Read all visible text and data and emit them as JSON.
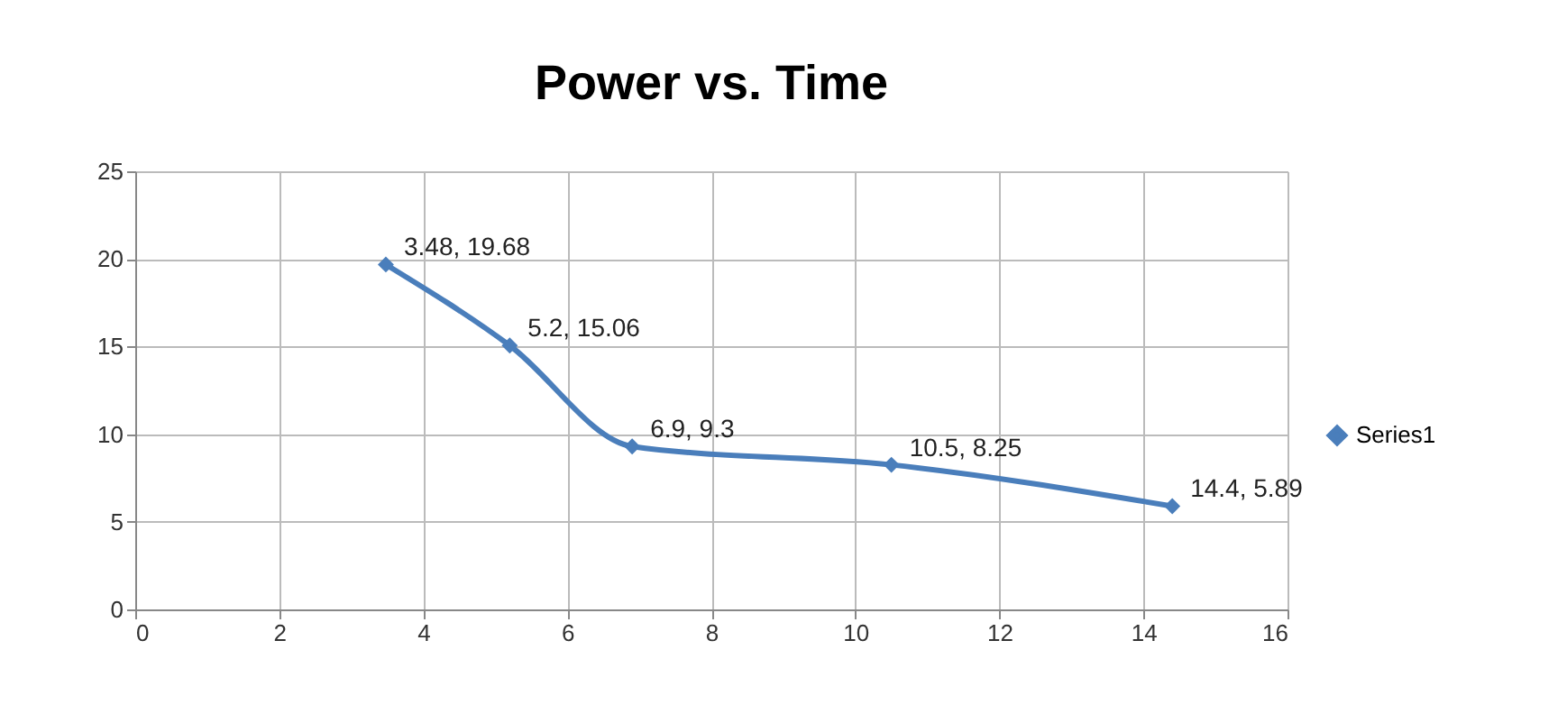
{
  "chart_data": {
    "type": "line",
    "title": "Power vs. Time",
    "x": [
      3.48,
      5.2,
      6.9,
      10.5,
      14.4
    ],
    "series": [
      {
        "name": "Series1",
        "color": "#4a7ebb",
        "values": [
          19.68,
          15.06,
          9.3,
          8.25,
          5.89
        ],
        "value_labels": [
          "3.48, 19.68",
          "5.2, 15.06",
          "6.9, 9.3",
          "10.5, 8.25",
          "14.4, 5.89"
        ]
      }
    ],
    "xlim": [
      0,
      16
    ],
    "xticks": [
      0,
      2,
      4,
      6,
      8,
      10,
      12,
      14,
      16
    ],
    "ylim": [
      0,
      25
    ],
    "yticks": [
      0,
      5,
      10,
      15,
      20,
      25
    ],
    "grid": true,
    "legend": "right",
    "marker": "diamond",
    "line_style": "solid"
  }
}
